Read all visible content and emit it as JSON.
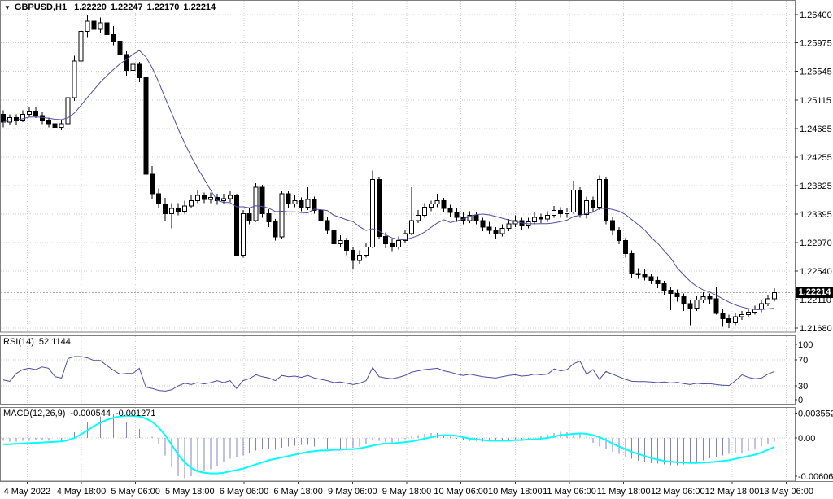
{
  "header": {
    "dropdown_icon": "▼",
    "symbol": "GBPUSD,H1",
    "open": "1.22220",
    "high": "1.22247",
    "low": "1.22170",
    "close": "1.22214"
  },
  "panels": {
    "rsi": {
      "name": "RSI(14)",
      "value": "52.1144"
    },
    "macd": {
      "name": "MACD(12,26,9)",
      "value_main": "-0.000544",
      "value_signal": "-0.001271"
    }
  },
  "price_axis": {
    "labels": [
      "1.26400",
      "1.25975",
      "1.25545",
      "1.25115",
      "1.24685",
      "1.24255",
      "1.23825",
      "1.23395",
      "1.22970",
      "1.22540",
      "1.22110",
      "1.21680"
    ],
    "current_tag": "1.22214"
  },
  "rsi_axis": {
    "labels": [
      "100",
      "70",
      "30",
      "0"
    ]
  },
  "macd_axis": {
    "labels": [
      "0.003552",
      "0.00",
      "-0.006061"
    ]
  },
  "colors": {
    "bull": "#ffffff",
    "bear": "#000000",
    "wick": "#000000",
    "ma_line": "#4d4da0",
    "rsi_line": "#4d4da0",
    "macd_hist": "#8383c8",
    "macd_signal": "#00ffff",
    "grid": "#cccccc",
    "panel_border": "#7f7f7f",
    "tag_bg": "#000000",
    "tag_text": "#ffffff"
  },
  "chart_data": {
    "type": "candlestick",
    "symbol": "GBPUSD",
    "timeframe": "H1",
    "title": "GBPUSD,H1 1.22220 1.22247 1.22170 1.22214",
    "x_labels": [
      "4 May 2022",
      "4 May 18:00",
      "5 May 06:00",
      "5 May 18:00",
      "6 May 06:00",
      "6 May 18:00",
      "9 May 06:00",
      "9 May 18:00",
      "10 May 06:00",
      "10 May 18:00",
      "11 May 06:00",
      "11 May 18:00",
      "12 May 06:00",
      "12 May 18:00",
      "13 May 06:00"
    ],
    "y_axis_ticks": [
      1.264,
      1.25975,
      1.25545,
      1.25115,
      1.24685,
      1.24255,
      1.23825,
      1.23395,
      1.2297,
      1.2254,
      1.2211,
      1.2168
    ],
    "main_range": [
      1.2168,
      1.264
    ],
    "current_price": 1.22214,
    "ma_period": 12,
    "candles": [
      [
        1.249,
        1.2496,
        1.247,
        1.2478
      ],
      [
        1.2478,
        1.249,
        1.2474,
        1.2485
      ],
      [
        1.2485,
        1.249,
        1.2474,
        1.248
      ],
      [
        1.248,
        1.2496,
        1.2478,
        1.249
      ],
      [
        1.249,
        1.25,
        1.2486,
        1.2495
      ],
      [
        1.2495,
        1.2501,
        1.2484,
        1.2488
      ],
      [
        1.2488,
        1.2493,
        1.2475,
        1.248
      ],
      [
        1.248,
        1.2485,
        1.247,
        1.2476
      ],
      [
        1.2476,
        1.2482,
        1.2464,
        1.247
      ],
      [
        1.247,
        1.2482,
        1.2466,
        1.2476
      ],
      [
        1.2476,
        1.2523,
        1.2474,
        1.2515
      ],
      [
        1.2515,
        1.2578,
        1.251,
        1.257
      ],
      [
        1.257,
        1.2625,
        1.2565,
        1.2615
      ],
      [
        1.2615,
        1.264,
        1.2605,
        1.263
      ],
      [
        1.263,
        1.2639,
        1.2608,
        1.2618
      ],
      [
        1.2618,
        1.2636,
        1.2612,
        1.2628
      ],
      [
        1.2628,
        1.2633,
        1.2602,
        1.261
      ],
      [
        1.261,
        1.2623,
        1.2594,
        1.26
      ],
      [
        1.26,
        1.2606,
        1.2574,
        1.258
      ],
      [
        1.258,
        1.2585,
        1.2548,
        1.2556
      ],
      [
        1.2556,
        1.257,
        1.255,
        1.2565
      ],
      [
        1.2565,
        1.2569,
        1.2538,
        1.2545
      ],
      [
        1.2545,
        1.2547,
        1.239,
        1.24
      ],
      [
        1.24,
        1.2412,
        1.2362,
        1.237
      ],
      [
        1.237,
        1.2378,
        1.2348,
        1.2355
      ],
      [
        1.2355,
        1.2364,
        1.233,
        1.234
      ],
      [
        1.234,
        1.2356,
        1.2318,
        1.2348
      ],
      [
        1.2348,
        1.2356,
        1.2338,
        1.2344
      ],
      [
        1.2344,
        1.236,
        1.234,
        1.2352
      ],
      [
        1.2352,
        1.2368,
        1.2348,
        1.236
      ],
      [
        1.236,
        1.2376,
        1.2356,
        1.2368
      ],
      [
        1.2368,
        1.2372,
        1.2356,
        1.2362
      ],
      [
        1.2362,
        1.2372,
        1.2356,
        1.2365
      ],
      [
        1.2365,
        1.237,
        1.2354,
        1.236
      ],
      [
        1.236,
        1.237,
        1.2355,
        1.2363
      ],
      [
        1.2363,
        1.2374,
        1.2358,
        1.2368
      ],
      [
        1.2368,
        1.237,
        1.2276,
        1.2278
      ],
      [
        1.2278,
        1.2346,
        1.2274,
        1.234
      ],
      [
        1.234,
        1.2348,
        1.2324,
        1.233
      ],
      [
        1.233,
        1.2386,
        1.2328,
        1.238
      ],
      [
        1.238,
        1.2384,
        1.2334,
        1.234
      ],
      [
        1.234,
        1.2347,
        1.232,
        1.2328
      ],
      [
        1.2328,
        1.2332,
        1.23,
        1.2305
      ],
      [
        1.2305,
        1.2374,
        1.2302,
        1.237
      ],
      [
        1.237,
        1.2374,
        1.2348,
        1.2355
      ],
      [
        1.2355,
        1.2368,
        1.235,
        1.236
      ],
      [
        1.236,
        1.2365,
        1.2344,
        1.235
      ],
      [
        1.235,
        1.238,
        1.2346,
        1.2362
      ],
      [
        1.2362,
        1.2366,
        1.234,
        1.2345
      ],
      [
        1.2345,
        1.235,
        1.2324,
        1.233
      ],
      [
        1.233,
        1.2336,
        1.231,
        1.2315
      ],
      [
        1.2315,
        1.2318,
        1.229,
        1.2295
      ],
      [
        1.2295,
        1.2308,
        1.229,
        1.23
      ],
      [
        1.23,
        1.2304,
        1.2278,
        1.2285
      ],
      [
        1.2285,
        1.229,
        1.2256,
        1.227
      ],
      [
        1.227,
        1.2285,
        1.2265,
        1.2278
      ],
      [
        1.2278,
        1.2296,
        1.2274,
        1.229
      ],
      [
        1.229,
        1.2405,
        1.2288,
        1.2392
      ],
      [
        1.2392,
        1.2396,
        1.2302,
        1.2306
      ],
      [
        1.2306,
        1.2312,
        1.2288,
        1.2295
      ],
      [
        1.2295,
        1.2302,
        1.2284,
        1.229
      ],
      [
        1.229,
        1.2306,
        1.2286,
        1.23
      ],
      [
        1.23,
        1.2316,
        1.2296,
        1.231
      ],
      [
        1.231,
        1.238,
        1.2308,
        1.233
      ],
      [
        1.233,
        1.2346,
        1.2326,
        1.2338
      ],
      [
        1.2338,
        1.2356,
        1.2334,
        1.235
      ],
      [
        1.235,
        1.236,
        1.2344,
        1.2355
      ],
      [
        1.2355,
        1.237,
        1.235,
        1.236
      ],
      [
        1.236,
        1.2364,
        1.2342,
        1.2348
      ],
      [
        1.2348,
        1.2354,
        1.2336,
        1.2342
      ],
      [
        1.2342,
        1.2348,
        1.2328,
        1.2335
      ],
      [
        1.2335,
        1.2342,
        1.2324,
        1.233
      ],
      [
        1.233,
        1.2344,
        1.2326,
        1.2338
      ],
      [
        1.2338,
        1.2342,
        1.2324,
        1.233
      ],
      [
        1.233,
        1.2334,
        1.2314,
        1.232
      ],
      [
        1.232,
        1.2328,
        1.231,
        1.2315
      ],
      [
        1.2315,
        1.232,
        1.2302,
        1.231
      ],
      [
        1.231,
        1.2324,
        1.2306,
        1.2318
      ],
      [
        1.2318,
        1.2332,
        1.2314,
        1.2325
      ],
      [
        1.2325,
        1.2338,
        1.232,
        1.233
      ],
      [
        1.233,
        1.2334,
        1.2316,
        1.2322
      ],
      [
        1.2322,
        1.2334,
        1.2318,
        1.2328
      ],
      [
        1.2328,
        1.2342,
        1.2324,
        1.2335
      ],
      [
        1.2335,
        1.234,
        1.2326,
        1.2332
      ],
      [
        1.2332,
        1.2344,
        1.2328,
        1.2338
      ],
      [
        1.2338,
        1.2352,
        1.2334,
        1.2345
      ],
      [
        1.2345,
        1.235,
        1.2334,
        1.234
      ],
      [
        1.234,
        1.2348,
        1.2334,
        1.2343
      ],
      [
        1.2343,
        1.239,
        1.234,
        1.2376
      ],
      [
        1.2376,
        1.238,
        1.2334,
        1.2339
      ],
      [
        1.2339,
        1.2366,
        1.2333,
        1.236
      ],
      [
        1.236,
        1.2366,
        1.2342,
        1.235
      ],
      [
        1.235,
        1.2398,
        1.2346,
        1.2392
      ],
      [
        1.2392,
        1.2396,
        1.2324,
        1.233
      ],
      [
        1.233,
        1.2336,
        1.2308,
        1.2315
      ],
      [
        1.2315,
        1.232,
        1.2294,
        1.23
      ],
      [
        1.23,
        1.2304,
        1.2274,
        1.228
      ],
      [
        1.228,
        1.2285,
        1.2244,
        1.225
      ],
      [
        1.225,
        1.2258,
        1.2242,
        1.2248
      ],
      [
        1.2248,
        1.2256,
        1.224,
        1.2245
      ],
      [
        1.2245,
        1.225,
        1.2234,
        1.224
      ],
      [
        1.224,
        1.2246,
        1.2228,
        1.2235
      ],
      [
        1.2235,
        1.2239,
        1.2218,
        1.2225
      ],
      [
        1.2225,
        1.223,
        1.2195,
        1.222
      ],
      [
        1.222,
        1.2226,
        1.2208,
        1.2215
      ],
      [
        1.2215,
        1.222,
        1.2194,
        1.2205
      ],
      [
        1.2205,
        1.221,
        1.2172,
        1.2198
      ],
      [
        1.2198,
        1.2216,
        1.2194,
        1.221
      ],
      [
        1.221,
        1.2222,
        1.2206,
        1.2215
      ],
      [
        1.2215,
        1.222,
        1.2204,
        1.2212
      ],
      [
        1.2212,
        1.2229,
        1.2188,
        1.219
      ],
      [
        1.219,
        1.2196,
        1.217,
        1.2182
      ],
      [
        1.2182,
        1.2188,
        1.2168,
        1.2176
      ],
      [
        1.2176,
        1.219,
        1.2172,
        1.2185
      ],
      [
        1.2185,
        1.2194,
        1.218,
        1.2188
      ],
      [
        1.2188,
        1.2198,
        1.2184,
        1.2192
      ],
      [
        1.2192,
        1.2202,
        1.2188,
        1.2196
      ],
      [
        1.2196,
        1.221,
        1.2192,
        1.2205
      ],
      [
        1.2205,
        1.2217,
        1.2201,
        1.2212
      ],
      [
        1.2212,
        1.2228,
        1.2208,
        1.22214
      ]
    ],
    "rsi": [
      39,
      37,
      49,
      55,
      57,
      55,
      59,
      57,
      44,
      42,
      72,
      75,
      75,
      73,
      69,
      69,
      61,
      54,
      48,
      49,
      49,
      57,
      28,
      26,
      23,
      22,
      24,
      30,
      34,
      32,
      35,
      33,
      35,
      38,
      35,
      38,
      26,
      38,
      41,
      47,
      44,
      42,
      38,
      46,
      44,
      45,
      43,
      46,
      42,
      40,
      38,
      35,
      36,
      34,
      32,
      34,
      38,
      58,
      44,
      42,
      41,
      43,
      46,
      51,
      53,
      55,
      56,
      57,
      53,
      51,
      48,
      46,
      48,
      46,
      44,
      43,
      42,
      44,
      46,
      47,
      45,
      46,
      48,
      47,
      48,
      56,
      53,
      55,
      64,
      68,
      48,
      55,
      40,
      52,
      48,
      44,
      40,
      37,
      36.5,
      36.5,
      36,
      35,
      36,
      34.5,
      35.5,
      33.5,
      32,
      34,
      33,
      33.5,
      32,
      31,
      30.5,
      38,
      47,
      43,
      41,
      42,
      48,
      52.1144
    ],
    "rsi_levels": [
      70,
      30
    ],
    "rsi_range": [
      0,
      100
    ],
    "macd_hist": [
      -0.0004,
      -0.0005,
      -0.0005,
      -0.0004,
      -0.0004,
      -0.0003,
      -0.0003,
      -0.0004,
      -0.0005,
      -0.0004,
      -0.0002,
      0.0008,
      0.0015,
      0.0022,
      0.0028,
      0.0031,
      0.0033,
      0.0034,
      0.0028,
      0.0022,
      0.0018,
      0.0013,
      0.0008,
      0.0002,
      -0.0008,
      -0.0025,
      -0.0042,
      -0.0055,
      -0.0058,
      -0.0055,
      -0.005,
      -0.0048,
      -0.0045,
      -0.004,
      -0.0035,
      -0.003,
      -0.0028,
      -0.0025,
      -0.0022,
      -0.0018,
      -0.0016,
      -0.0015,
      -0.0017,
      -0.0014,
      -0.0012,
      -0.0011,
      -0.001,
      -0.001,
      -0.0012,
      -0.0014,
      -0.0016,
      -0.0017,
      -0.0016,
      -0.0015,
      -0.0014,
      -0.0012,
      -0.0009,
      -0.0003,
      -0.0004,
      -0.0006,
      -0.0007,
      -0.0005,
      -0.0002,
      0.0002,
      0.0004,
      0.0006,
      0.0007,
      0.0007,
      0.0005,
      0.0002,
      -0.0001,
      -0.0003,
      -0.0004,
      -0.0004,
      -0.0005,
      -0.0005,
      -0.0005,
      -0.0004,
      -0.0003,
      -0.0002,
      -0.0002,
      -0.0001,
      0.0,
      0.0003,
      0.0005,
      0.0007,
      0.0009,
      0.0008,
      0.0007,
      0.0005,
      0.0002,
      -0.0007,
      -0.0012,
      -0.0016,
      -0.002,
      -0.0023,
      -0.0027,
      -0.003,
      -0.0033,
      -0.0034,
      -0.0036,
      -0.0037,
      -0.0038,
      -0.0039,
      -0.0039,
      -0.0038,
      -0.0036,
      -0.0034,
      -0.0032,
      -0.0029,
      -0.0027,
      -0.0025,
      -0.0023,
      -0.0022,
      -0.0021,
      -0.0019,
      -0.0016,
      -0.0012,
      -0.0008,
      -0.000544
    ],
    "macd_signal": [
      -0.0009,
      -0.0009,
      -0.00085,
      -0.0008,
      -0.00075,
      -0.0007,
      -0.00065,
      -0.0006,
      -0.00055,
      -0.0005,
      -0.0003,
      0.0,
      0.0005,
      0.0011,
      0.0017,
      0.0022,
      0.0026,
      0.0029,
      0.0031,
      0.0032,
      0.00315,
      0.0031,
      0.0028,
      0.0023,
      0.0015,
      0.0004,
      -0.001,
      -0.0024,
      -0.0035,
      -0.0043,
      -0.0048,
      -0.005,
      -0.0051,
      -0.0051,
      -0.005,
      -0.0048,
      -0.0046,
      -0.0044,
      -0.0041,
      -0.0038,
      -0.0035,
      -0.0032,
      -0.003,
      -0.0028,
      -0.0026,
      -0.0024,
      -0.0022,
      -0.002,
      -0.0019,
      -0.0018,
      -0.0018,
      -0.0017,
      -0.0017,
      -0.0016,
      -0.0016,
      -0.0015,
      -0.0013,
      -0.0011,
      -0.0009,
      -0.0008,
      -0.0008,
      -0.0007,
      -0.0006,
      -0.0005,
      -0.0003,
      -0.0001,
      0.0001,
      0.0003,
      0.0004,
      0.0004,
      0.0003,
      0.0001,
      -0.0001,
      -0.0002,
      -0.0003,
      -0.0004,
      -0.0004,
      -0.0004,
      -0.0004,
      -0.0003,
      -0.0003,
      -0.0002,
      -0.0002,
      -0.0001,
      0.0,
      0.0002,
      0.0004,
      0.0005,
      0.0006,
      0.00065,
      0.0006,
      0.0004,
      0.0001,
      -0.0003,
      -0.0008,
      -0.0012,
      -0.0016,
      -0.002,
      -0.0023,
      -0.0026,
      -0.0029,
      -0.0031,
      -0.0033,
      -0.0034,
      -0.0035,
      -0.00355,
      -0.0036,
      -0.0036,
      -0.00355,
      -0.0035,
      -0.0034,
      -0.0033,
      -0.0032,
      -0.003,
      -0.0028,
      -0.0026,
      -0.0024,
      -0.0021,
      -0.0017,
      -0.001271
    ],
    "macd_axis_values": [
      0.003552,
      0,
      -0.006061
    ],
    "rsi_last": 52.1144,
    "macd_last_main": -0.000544,
    "macd_last_signal": -0.001271
  }
}
